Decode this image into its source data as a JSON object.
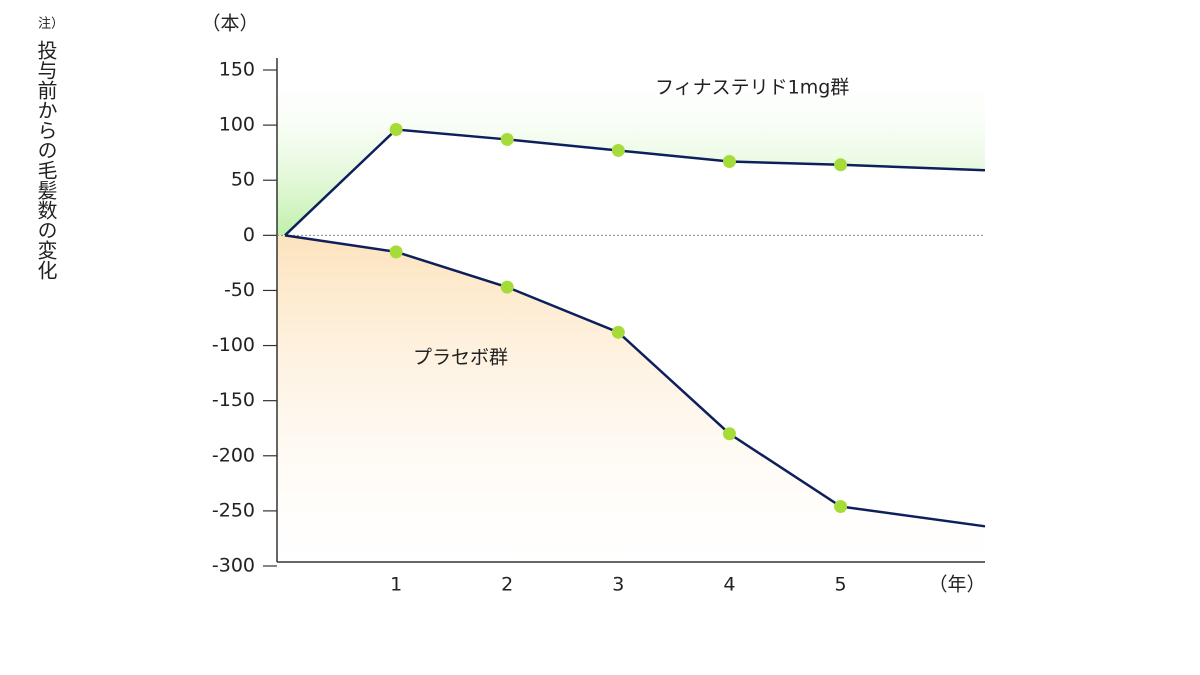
{
  "chart_data": {
    "type": "line",
    "y_unit_label": "（本）",
    "x_unit_label": "（年）",
    "note": "注）",
    "ylabel": "投与前からの毛髪数の変化",
    "x": [
      0,
      1,
      2,
      3,
      4,
      5,
      6.3
    ],
    "xlim": [
      0,
      6.3
    ],
    "xticks": [
      1,
      2,
      3,
      4,
      5
    ],
    "ylim": [
      -300,
      150
    ],
    "yticks": [
      -300,
      -250,
      -200,
      -150,
      -100,
      -50,
      0,
      50,
      100,
      150
    ],
    "zero_line": true,
    "line_color": "#0d1f5c",
    "marker_color": "#a6dc3a",
    "series": [
      {
        "name": "フィナステリド1mg群",
        "color": "#bff0a8",
        "area": "above",
        "values": [
          0,
          96,
          87,
          77,
          67,
          64,
          59
        ]
      },
      {
        "name": "プラセボ群",
        "color": "#fde3bd",
        "area": "below",
        "values": [
          0,
          -15,
          -47,
          -88,
          -180,
          -246,
          -264
        ]
      }
    ]
  }
}
